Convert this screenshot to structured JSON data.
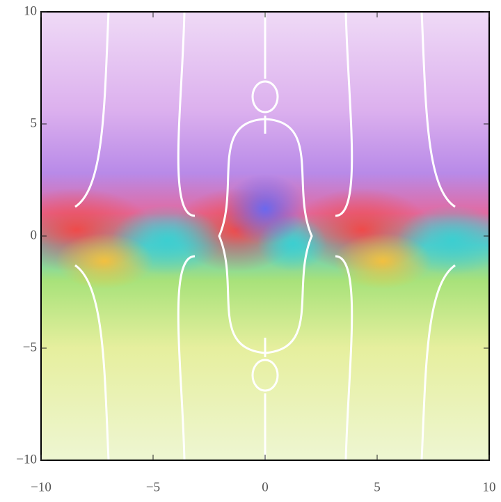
{
  "chart_data": {
    "type": "complex-plot",
    "xlim": [
      -10,
      10
    ],
    "ylim": [
      -10,
      10
    ],
    "xticks": [
      {
        "value": -10,
        "label": "−10"
      },
      {
        "value": -5,
        "label": "−5"
      },
      0,
      5,
      10
    ],
    "yticks": [
      {
        "value": -10,
        "label": "−10"
      },
      {
        "value": -5,
        "label": "−5"
      },
      0,
      5,
      10
    ]
  }
}
